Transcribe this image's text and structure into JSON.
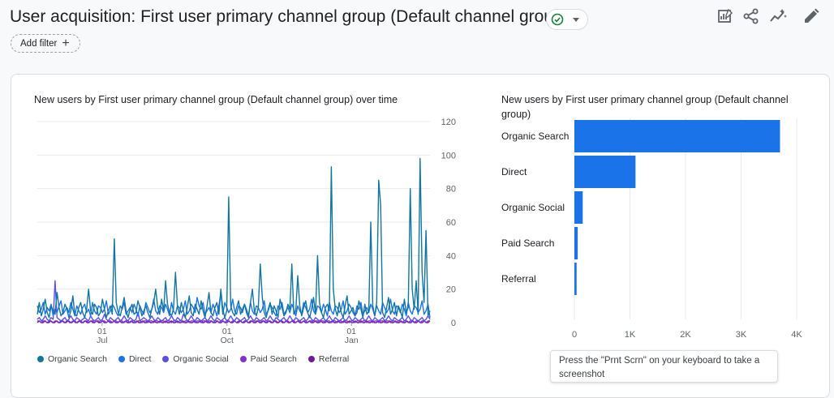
{
  "header": {
    "title": "User acquisition: First user primary channel group (Default channel group)",
    "add_filter_label": "Add filter",
    "icons": [
      "customize-report-icon",
      "share-icon",
      "insights-icon",
      "edit-icon"
    ]
  },
  "line_chart": {
    "title": "New users by First user primary channel group (Default channel group) over time"
  },
  "bar_chart": {
    "title": "New users by First user primary channel group (Default channel group)"
  },
  "tooltip": {
    "text": "Press the \"Prnt Scrn\" on your keyboard to take a screenshot"
  },
  "colors": {
    "organic_search": "#12769e",
    "direct": "#1a73e8",
    "organic_social": "#5b4fe8",
    "paid_search": "#8430ce",
    "referral": "#6a1b9a",
    "bar": "#1a73e8",
    "status_check": "#188038"
  },
  "chart_data": [
    {
      "type": "line",
      "title": "New users by First user primary channel group (Default channel group) over time",
      "x_tick_labels": [
        {
          "day": "01",
          "month": "Jul"
        },
        {
          "day": "01",
          "month": "Oct"
        },
        {
          "day": "01",
          "month": "Jan"
        }
      ],
      "ylim": [
        0,
        120
      ],
      "y_ticks": [
        0,
        20,
        40,
        60,
        80,
        100,
        120
      ],
      "grid": true,
      "legend_position": "bottom",
      "series": [
        {
          "name": "Organic Search",
          "values": [
            5,
            12,
            4,
            8,
            14,
            6,
            3,
            10,
            7,
            5,
            18,
            9,
            4,
            6,
            11,
            8,
            3,
            7,
            16,
            5,
            4,
            9,
            12,
            6,
            3,
            8,
            20,
            7,
            5,
            11,
            9,
            4,
            6,
            14,
            8,
            3,
            7,
            10,
            5,
            50,
            12,
            6,
            4,
            9,
            15,
            7,
            3,
            8,
            11,
            5,
            6,
            13,
            9,
            4,
            7,
            10,
            6,
            3,
            8,
            12,
            20,
            9,
            5,
            14,
            7,
            25,
            11,
            6,
            4,
            8,
            30,
            10,
            5,
            12,
            7,
            3,
            9,
            16,
            6,
            4,
            11,
            8,
            5,
            13,
            7,
            3,
            10,
            18,
            6,
            4,
            9,
            12,
            5,
            20,
            8,
            3,
            7,
            75,
            10,
            6,
            4,
            9,
            13,
            5,
            8,
            11,
            6,
            3,
            12,
            20,
            7,
            4,
            9,
            35,
            15,
            6,
            3,
            8,
            12,
            5,
            10,
            7,
            3,
            14,
            9,
            4,
            6,
            11,
            8,
            35,
            5,
            7,
            28,
            10,
            4,
            9,
            13,
            6,
            3,
            8,
            15,
            5,
            40,
            12,
            6,
            3,
            9,
            11,
            7,
            93,
            20,
            8,
            4,
            12,
            6,
            3,
            10,
            16,
            5,
            7,
            9,
            4,
            6,
            13,
            8,
            3,
            11,
            5,
            7,
            60,
            10,
            4,
            12,
            85,
            70,
            6,
            3,
            9,
            15,
            5,
            8,
            12,
            4,
            10,
            7,
            3,
            14,
            6,
            9,
            80,
            20,
            8,
            25,
            5,
            98,
            30,
            12,
            55,
            4,
            7
          ]
        },
        {
          "name": "Direct",
          "values": [
            10,
            6,
            8,
            12,
            5,
            9,
            7,
            11,
            4,
            8,
            6,
            10,
            13,
            5,
            7,
            9,
            6,
            12,
            8,
            4,
            10,
            7,
            5,
            9,
            11,
            6,
            8,
            4,
            12,
            7,
            5,
            10,
            9,
            6,
            8,
            13,
            5,
            7,
            11,
            9,
            6,
            4,
            10,
            8,
            12,
            5,
            7,
            9,
            6,
            11,
            8,
            4,
            10,
            7,
            5,
            12,
            9,
            6,
            8,
            14,
            7,
            5,
            10,
            9,
            6,
            11,
            8,
            4,
            12,
            7,
            5,
            10,
            9,
            6,
            8,
            13,
            5,
            7,
            11,
            9,
            6,
            15,
            10,
            8,
            12,
            5,
            7,
            9,
            6,
            11,
            8,
            4,
            10,
            18,
            5,
            12,
            9,
            6,
            8,
            14,
            7,
            5,
            10,
            9,
            6,
            11,
            8,
            4,
            12,
            7,
            5,
            10,
            9,
            6,
            8,
            13,
            5,
            7,
            11,
            9,
            6,
            4,
            10,
            8,
            12,
            5,
            7,
            9,
            6,
            11,
            8,
            4,
            10,
            7,
            5,
            12,
            9,
            6,
            8,
            14,
            7,
            5,
            10,
            9,
            6,
            11,
            8,
            4,
            12,
            7,
            5,
            10,
            9,
            6,
            8,
            13,
            5,
            7,
            11,
            9,
            6,
            4,
            10,
            8,
            12,
            5,
            7,
            9,
            6,
            11,
            8,
            4,
            10,
            7,
            5,
            12,
            9,
            6,
            8,
            14,
            7,
            5,
            10,
            9,
            6,
            11,
            8,
            4,
            12,
            7,
            5,
            10,
            9,
            6,
            8,
            13,
            5,
            7,
            11,
            3
          ]
        },
        {
          "name": "Organic Social",
          "values": [
            2,
            3,
            1,
            2,
            4,
            2,
            1,
            3,
            2,
            25,
            3,
            2,
            1,
            2,
            3,
            1,
            2,
            4,
            2,
            1,
            3,
            2,
            1,
            2,
            3,
            2,
            1,
            4,
            2,
            1,
            2,
            3,
            1,
            2,
            5,
            2,
            1,
            3,
            2,
            1,
            2,
            3,
            1,
            2,
            4,
            2,
            1,
            3,
            2,
            1,
            2,
            6,
            1,
            2,
            3,
            2,
            1,
            2,
            4,
            2,
            1,
            3,
            2,
            1,
            2,
            3,
            1,
            2,
            4,
            2,
            1,
            3,
            2,
            1,
            5,
            3,
            1,
            2,
            4,
            2,
            1,
            3,
            2,
            1,
            2,
            3,
            1,
            2,
            4,
            2,
            1,
            3,
            2,
            1,
            2,
            3,
            1,
            2,
            4,
            2,
            1,
            3,
            2,
            1,
            2,
            3,
            1,
            2,
            4,
            2,
            1,
            3,
            2,
            1,
            2,
            3,
            1,
            2,
            4,
            2,
            1,
            3,
            2,
            1,
            2,
            3,
            1,
            2,
            4,
            2,
            1,
            3,
            2,
            1,
            2,
            3,
            1,
            2,
            4,
            2,
            1,
            3,
            2,
            1,
            2,
            3,
            1,
            2,
            4,
            2,
            1,
            3,
            2,
            1,
            2,
            3,
            1,
            2,
            4,
            2,
            1,
            3,
            2,
            1,
            2,
            3,
            1,
            2,
            4,
            2,
            1,
            3,
            2,
            1,
            2,
            3,
            1,
            2,
            4,
            2,
            1,
            3,
            2,
            1,
            2,
            3,
            1,
            2,
            4,
            2,
            1,
            3,
            2,
            1,
            2,
            3,
            1,
            2,
            4,
            2
          ]
        },
        {
          "name": "Paid Search",
          "values": [
            1,
            1,
            0,
            1,
            1,
            0,
            1,
            1,
            0,
            1,
            1,
            0,
            1,
            1,
            0,
            1,
            1,
            0,
            1,
            1,
            0,
            1,
            1,
            0,
            1,
            1,
            0,
            1,
            1,
            0,
            1,
            1,
            0,
            1,
            1,
            0,
            1,
            1,
            0,
            1,
            1,
            0,
            1,
            1,
            0,
            1,
            1,
            0,
            1,
            1,
            0,
            1,
            1,
            0,
            1,
            1,
            0,
            1,
            1,
            0,
            1,
            1,
            0,
            1,
            1,
            0,
            1,
            1,
            0,
            1,
            1,
            0,
            1,
            1,
            0,
            1,
            1,
            0,
            1,
            1,
            0,
            1,
            1,
            0,
            1,
            1,
            0,
            1,
            1,
            0,
            1,
            1,
            0,
            1,
            1,
            0,
            1,
            1,
            0,
            1,
            1,
            0,
            1,
            1,
            0,
            1,
            1,
            0,
            1,
            1,
            0,
            1,
            1,
            0,
            1,
            1,
            0,
            1,
            1,
            0,
            1,
            1,
            0,
            1,
            1,
            0,
            1,
            1,
            0,
            1,
            1,
            0,
            1,
            1,
            0,
            1,
            1,
            0,
            1,
            1,
            0,
            1,
            1,
            0,
            1,
            1,
            0,
            1,
            1,
            0,
            1,
            1,
            0,
            1,
            1,
            0,
            1,
            1,
            0,
            1,
            1,
            0,
            1,
            1,
            0,
            1,
            1,
            0,
            1,
            1,
            0,
            1,
            1,
            0,
            1,
            1,
            0,
            1,
            1,
            0,
            1,
            1,
            0,
            1,
            1,
            0,
            1,
            1,
            0,
            1,
            1,
            0,
            1,
            1,
            0,
            1,
            1,
            0,
            1,
            1
          ]
        },
        {
          "name": "Referral",
          "values": [
            0,
            1,
            0,
            0,
            1,
            0,
            0,
            1,
            0,
            0,
            1,
            0,
            0,
            1,
            0,
            0,
            1,
            0,
            0,
            1,
            0,
            0,
            1,
            0,
            0,
            1,
            0,
            0,
            1,
            0,
            0,
            1,
            0,
            0,
            1,
            0,
            0,
            1,
            0,
            0,
            1,
            0,
            0,
            1,
            0,
            0,
            1,
            0,
            0,
            1,
            0,
            0,
            1,
            0,
            0,
            1,
            0,
            0,
            1,
            0,
            0,
            1,
            0,
            0,
            1,
            0,
            0,
            1,
            0,
            0,
            1,
            0,
            0,
            1,
            0,
            0,
            1,
            0,
            0,
            1,
            0,
            0,
            1,
            0,
            0,
            1,
            0,
            0,
            1,
            0,
            0,
            1,
            0,
            0,
            1,
            0,
            0,
            1,
            0,
            0,
            1,
            0,
            0,
            1,
            0,
            0,
            1,
            0,
            0,
            1,
            0,
            0,
            1,
            0,
            0,
            1,
            0,
            0,
            1,
            0,
            0,
            1,
            0,
            0,
            1,
            0,
            0,
            1,
            0,
            0,
            1,
            0,
            0,
            1,
            0,
            0,
            1,
            0,
            0,
            1,
            0,
            0,
            1,
            0,
            0,
            1,
            0,
            0,
            1,
            0,
            0,
            1,
            0,
            0,
            1,
            0,
            0,
            1,
            0,
            0,
            1,
            0,
            0,
            1,
            0,
            0,
            1,
            0,
            0,
            1,
            0,
            0,
            1,
            0,
            0,
            1,
            0,
            0,
            1,
            0,
            0,
            1,
            0,
            0,
            1,
            0,
            0,
            1,
            0,
            0,
            1,
            0,
            0,
            1,
            0,
            0,
            1,
            0,
            0,
            1,
            0,
            0,
            1,
            0,
            0,
            1
          ]
        }
      ]
    },
    {
      "type": "bar",
      "orientation": "horizontal",
      "title": "New users by First user primary channel group (Default channel group)",
      "categories": [
        "Organic Search",
        "Direct",
        "Organic Social",
        "Paid Search",
        "Referral"
      ],
      "values": [
        3700,
        1100,
        150,
        60,
        40
      ],
      "xlim": [
        0,
        4000
      ],
      "x_tick_labels": [
        "0",
        "1K",
        "2K",
        "3K",
        "4K"
      ],
      "x_tick_values": [
        0,
        1000,
        2000,
        3000,
        4000
      ],
      "grid": true
    }
  ]
}
